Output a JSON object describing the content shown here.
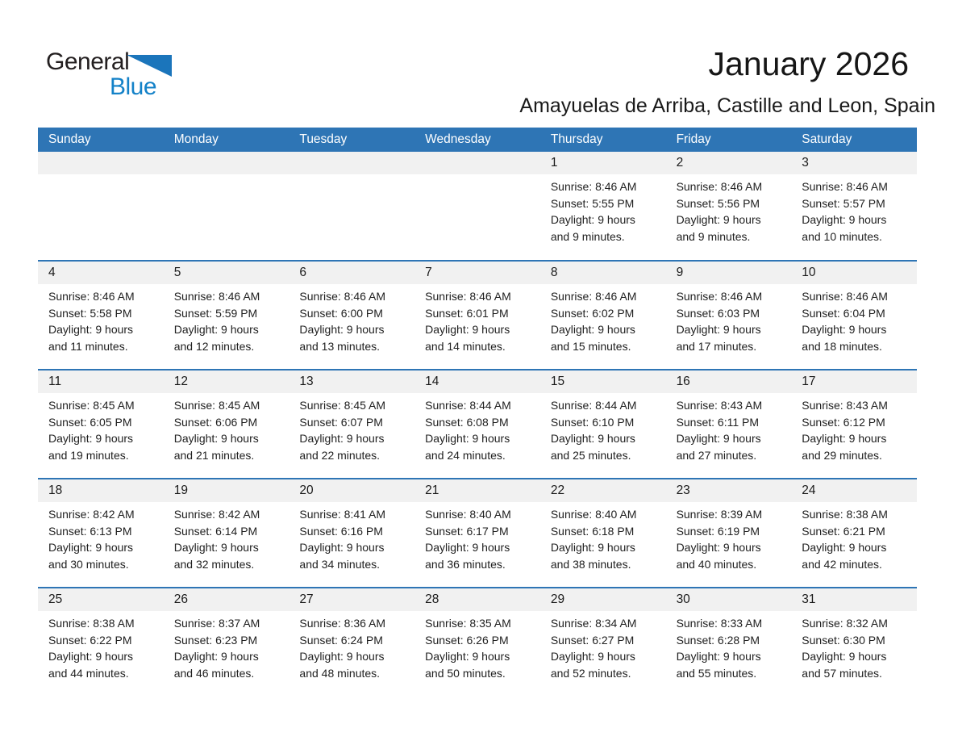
{
  "logo": {
    "line1": "General",
    "line2": "Blue"
  },
  "header": {
    "month_title": "January 2026",
    "location": "Amayuelas de Arriba, Castille and Leon, Spain"
  },
  "colors": {
    "header_bg": "#2e75b5",
    "divider": "#2e75b5",
    "band_bg": "#f1f1f1",
    "logo_text": "#231f20",
    "logo_triangle": "#1b75bb",
    "logo_blue": "#1482c8"
  },
  "weekday_header": [
    "Sunday",
    "Monday",
    "Tuesday",
    "Wednesday",
    "Thursday",
    "Friday",
    "Saturday"
  ],
  "labels": {
    "sunrise": "Sunrise:",
    "sunset": "Sunset:",
    "daylight": "Daylight:"
  },
  "weeks": [
    [
      null,
      null,
      null,
      null,
      {
        "day": "1",
        "sunrise": "8:46 AM",
        "sunset": "5:55 PM",
        "daylight": "9 hours and 9 minutes."
      },
      {
        "day": "2",
        "sunrise": "8:46 AM",
        "sunset": "5:56 PM",
        "daylight": "9 hours and 9 minutes."
      },
      {
        "day": "3",
        "sunrise": "8:46 AM",
        "sunset": "5:57 PM",
        "daylight": "9 hours and 10 minutes."
      }
    ],
    [
      {
        "day": "4",
        "sunrise": "8:46 AM",
        "sunset": "5:58 PM",
        "daylight": "9 hours and 11 minutes."
      },
      {
        "day": "5",
        "sunrise": "8:46 AM",
        "sunset": "5:59 PM",
        "daylight": "9 hours and 12 minutes."
      },
      {
        "day": "6",
        "sunrise": "8:46 AM",
        "sunset": "6:00 PM",
        "daylight": "9 hours and 13 minutes."
      },
      {
        "day": "7",
        "sunrise": "8:46 AM",
        "sunset": "6:01 PM",
        "daylight": "9 hours and 14 minutes."
      },
      {
        "day": "8",
        "sunrise": "8:46 AM",
        "sunset": "6:02 PM",
        "daylight": "9 hours and 15 minutes."
      },
      {
        "day": "9",
        "sunrise": "8:46 AM",
        "sunset": "6:03 PM",
        "daylight": "9 hours and 17 minutes."
      },
      {
        "day": "10",
        "sunrise": "8:46 AM",
        "sunset": "6:04 PM",
        "daylight": "9 hours and 18 minutes."
      }
    ],
    [
      {
        "day": "11",
        "sunrise": "8:45 AM",
        "sunset": "6:05 PM",
        "daylight": "9 hours and 19 minutes."
      },
      {
        "day": "12",
        "sunrise": "8:45 AM",
        "sunset": "6:06 PM",
        "daylight": "9 hours and 21 minutes."
      },
      {
        "day": "13",
        "sunrise": "8:45 AM",
        "sunset": "6:07 PM",
        "daylight": "9 hours and 22 minutes."
      },
      {
        "day": "14",
        "sunrise": "8:44 AM",
        "sunset": "6:08 PM",
        "daylight": "9 hours and 24 minutes."
      },
      {
        "day": "15",
        "sunrise": "8:44 AM",
        "sunset": "6:10 PM",
        "daylight": "9 hours and 25 minutes."
      },
      {
        "day": "16",
        "sunrise": "8:43 AM",
        "sunset": "6:11 PM",
        "daylight": "9 hours and 27 minutes."
      },
      {
        "day": "17",
        "sunrise": "8:43 AM",
        "sunset": "6:12 PM",
        "daylight": "9 hours and 29 minutes."
      }
    ],
    [
      {
        "day": "18",
        "sunrise": "8:42 AM",
        "sunset": "6:13 PM",
        "daylight": "9 hours and 30 minutes."
      },
      {
        "day": "19",
        "sunrise": "8:42 AM",
        "sunset": "6:14 PM",
        "daylight": "9 hours and 32 minutes."
      },
      {
        "day": "20",
        "sunrise": "8:41 AM",
        "sunset": "6:16 PM",
        "daylight": "9 hours and 34 minutes."
      },
      {
        "day": "21",
        "sunrise": "8:40 AM",
        "sunset": "6:17 PM",
        "daylight": "9 hours and 36 minutes."
      },
      {
        "day": "22",
        "sunrise": "8:40 AM",
        "sunset": "6:18 PM",
        "daylight": "9 hours and 38 minutes."
      },
      {
        "day": "23",
        "sunrise": "8:39 AM",
        "sunset": "6:19 PM",
        "daylight": "9 hours and 40 minutes."
      },
      {
        "day": "24",
        "sunrise": "8:38 AM",
        "sunset": "6:21 PM",
        "daylight": "9 hours and 42 minutes."
      }
    ],
    [
      {
        "day": "25",
        "sunrise": "8:38 AM",
        "sunset": "6:22 PM",
        "daylight": "9 hours and 44 minutes."
      },
      {
        "day": "26",
        "sunrise": "8:37 AM",
        "sunset": "6:23 PM",
        "daylight": "9 hours and 46 minutes."
      },
      {
        "day": "27",
        "sunrise": "8:36 AM",
        "sunset": "6:24 PM",
        "daylight": "9 hours and 48 minutes."
      },
      {
        "day": "28",
        "sunrise": "8:35 AM",
        "sunset": "6:26 PM",
        "daylight": "9 hours and 50 minutes."
      },
      {
        "day": "29",
        "sunrise": "8:34 AM",
        "sunset": "6:27 PM",
        "daylight": "9 hours and 52 minutes."
      },
      {
        "day": "30",
        "sunrise": "8:33 AM",
        "sunset": "6:28 PM",
        "daylight": "9 hours and 55 minutes."
      },
      {
        "day": "31",
        "sunrise": "8:32 AM",
        "sunset": "6:30 PM",
        "daylight": "9 hours and 57 minutes."
      }
    ]
  ]
}
